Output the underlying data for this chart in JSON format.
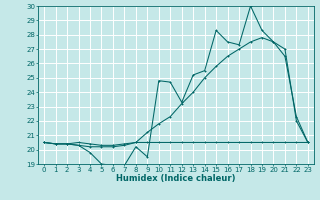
{
  "title": "",
  "xlabel": "Humidex (Indice chaleur)",
  "xlim": [
    -0.5,
    23.5
  ],
  "ylim": [
    19,
    30
  ],
  "yticks": [
    19,
    20,
    21,
    22,
    23,
    24,
    25,
    26,
    27,
    28,
    29,
    30
  ],
  "xticks": [
    0,
    1,
    2,
    3,
    4,
    5,
    6,
    7,
    8,
    9,
    10,
    11,
    12,
    13,
    14,
    15,
    16,
    17,
    18,
    19,
    20,
    21,
    22,
    23
  ],
  "background_color": "#c5e8e8",
  "grid_color": "#ffffff",
  "line_color": "#006666",
  "line1_y": [
    20.5,
    20.4,
    20.4,
    20.5,
    20.4,
    20.3,
    20.3,
    20.4,
    20.5,
    20.5,
    20.5,
    20.5,
    20.5,
    20.5,
    20.5,
    20.5,
    20.5,
    20.5,
    20.5,
    20.5,
    20.5,
    20.5,
    20.5,
    20.5
  ],
  "line2_y": [
    20.5,
    20.4,
    20.4,
    20.3,
    19.8,
    19.0,
    18.9,
    18.9,
    20.2,
    19.5,
    24.8,
    24.7,
    23.3,
    25.2,
    25.5,
    28.3,
    27.5,
    27.3,
    30.0,
    28.3,
    27.5,
    26.5,
    22.3,
    20.5
  ],
  "line3_y": [
    20.5,
    20.4,
    20.4,
    20.3,
    20.2,
    20.2,
    20.2,
    20.3,
    20.5,
    21.2,
    21.8,
    22.3,
    23.2,
    24.0,
    25.0,
    25.8,
    26.5,
    27.0,
    27.5,
    27.8,
    27.5,
    27.0,
    22.0,
    20.5
  ],
  "tick_fontsize": 5.0,
  "xlabel_fontsize": 6.0
}
